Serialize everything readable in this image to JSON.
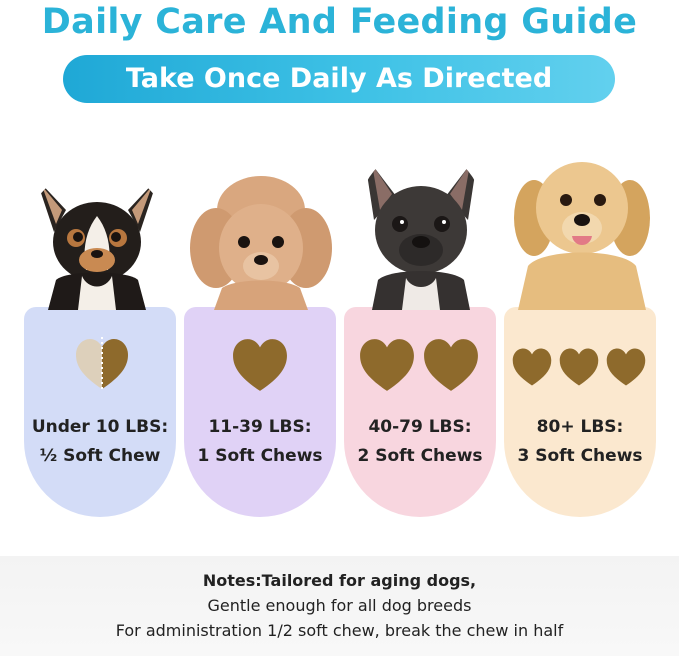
{
  "title": "Daily Care And Feeding Guide",
  "banner": "Take Once Daily As Directed",
  "cards": [
    {
      "weight": "Under 10 LBS:",
      "dose": "½ Soft Chew",
      "color": "#d3dcf7",
      "dog": "chihuahua-image"
    },
    {
      "weight": "11-39 LBS:",
      "dose": "1 Soft Chews",
      "color": "#e0d2f6",
      "dog": "poodle-image"
    },
    {
      "weight": "40-79 LBS:",
      "dose": "2 Soft Chews",
      "color": "#f8d6df",
      "dog": "french-bulldog-image"
    },
    {
      "weight": "80+ LBS:",
      "dose": "3 Soft Chews",
      "color": "#fbe8cf",
      "dog": "golden-retriever-image"
    }
  ],
  "notes": {
    "line1": "Notes:Tailored for aging dogs,",
    "line2": "Gentle enough for all dog breeds",
    "line3": "For administration 1/2 soft chew, break the chew in half"
  },
  "colors": {
    "title": "#2bb3d8",
    "chew": "#8e6a2c",
    "chew_half": "#ddd0bb"
  }
}
